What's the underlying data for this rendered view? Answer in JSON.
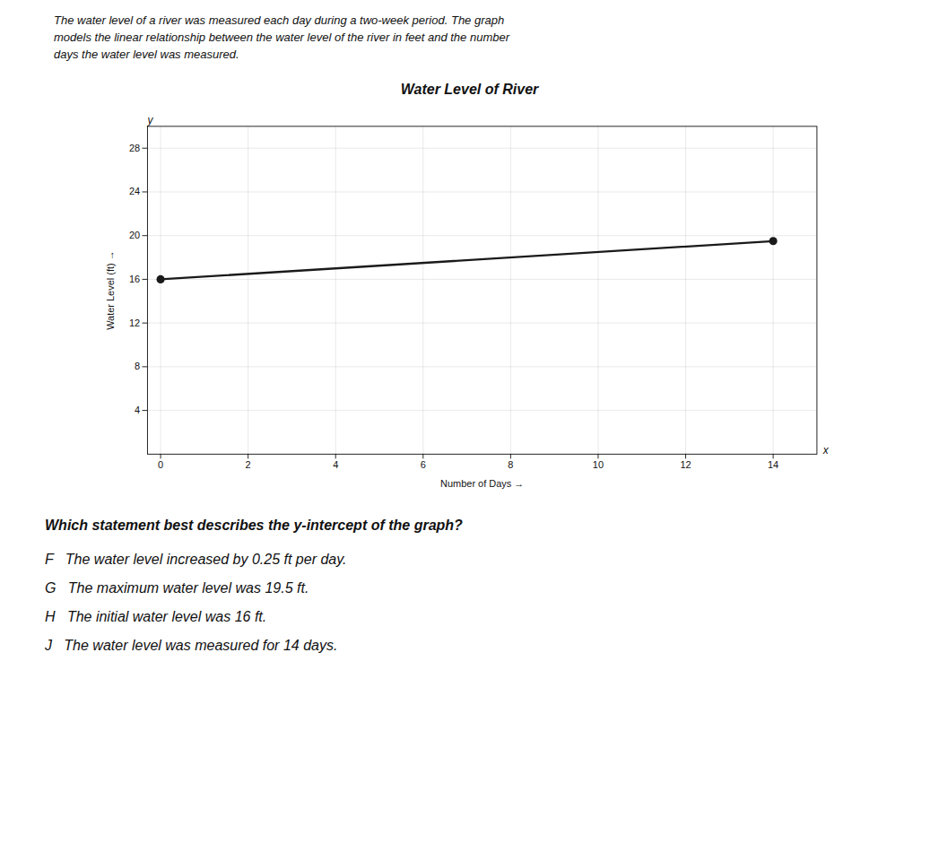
{
  "chart_data": {
    "type": "line",
    "title": "Water Level of River",
    "subtitle": [
      "The water level of a river was measured each day during a two-week period. The graph",
      "models the linear relationship between the water level of the river in feet and the number",
      "days the water level was measured."
    ],
    "xlabel": "Number of Days",
    "ylabel": "Water Level (ft)",
    "x": [
      0,
      14
    ],
    "values": [
      16,
      19.5
    ],
    "color": "#1a1a1a",
    "marker": "o",
    "xlim": [
      -0.3,
      15.0
    ],
    "ylim": [
      0,
      30
    ],
    "xticks": [
      0,
      2,
      4,
      6,
      8,
      10,
      12,
      14
    ],
    "yticks": [
      4,
      8,
      12,
      16,
      20,
      24,
      28
    ],
    "grid": true,
    "annotations": [
      "x",
      "y"
    ],
    "caption": [
      "Which statement best describes the y-intercept of the graph?",
      "F   The water level increased by 0.25 ft per day.",
      "G   The maximum water level was 19.5 ft.",
      "H   The initial water level was 16 ft.",
      "J   The water level was measured for 14 days."
    ]
  }
}
